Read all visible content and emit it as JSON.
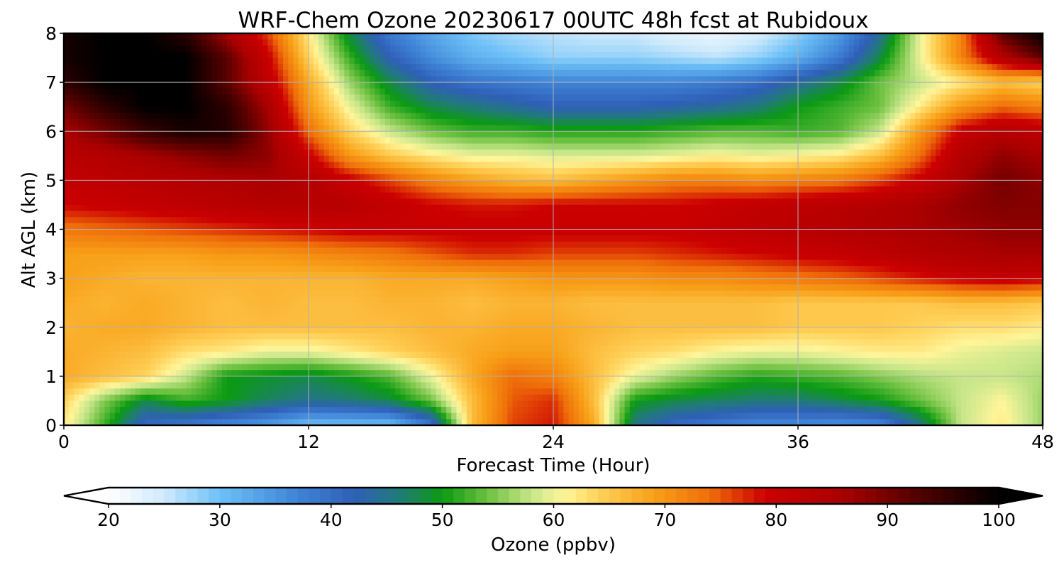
{
  "chart_data": {
    "type": "heatmap",
    "title": "WRF-Chem Ozone  20230617 00UTC 48h fcst at Rubidoux",
    "xlabel": "Forecast Time (Hour)",
    "ylabel": "Alt AGL (km)",
    "xlim": [
      0,
      48
    ],
    "ylim": [
      0,
      8
    ],
    "x_ticks": [
      "0",
      "12",
      "24",
      "36",
      "48"
    ],
    "y_ticks": [
      "0",
      "1",
      "2",
      "3",
      "4",
      "5",
      "6",
      "7",
      "8"
    ],
    "grid": true,
    "colorbar": {
      "label": "Ozone  (ppbv)",
      "range": [
        20,
        100
      ],
      "extend": "both",
      "ticks": [
        "20",
        "30",
        "40",
        "50",
        "60",
        "70",
        "80",
        "90",
        "100"
      ],
      "stops": [
        {
          "v": 20,
          "c": "#ffffff"
        },
        {
          "v": 25,
          "c": "#cfeafc"
        },
        {
          "v": 30,
          "c": "#6cc0f7"
        },
        {
          "v": 37,
          "c": "#3f84d6"
        },
        {
          "v": 42,
          "c": "#2f5fb8"
        },
        {
          "v": 46,
          "c": "#217a7a"
        },
        {
          "v": 50,
          "c": "#0b9a12"
        },
        {
          "v": 54,
          "c": "#6cc040"
        },
        {
          "v": 58,
          "c": "#c8e68a"
        },
        {
          "v": 61,
          "c": "#fff59a"
        },
        {
          "v": 64,
          "c": "#ffd25a"
        },
        {
          "v": 69,
          "c": "#f8a018"
        },
        {
          "v": 74,
          "c": "#ef6e0a"
        },
        {
          "v": 79,
          "c": "#cc0000"
        },
        {
          "v": 86,
          "c": "#aa0000"
        },
        {
          "v": 92,
          "c": "#5a0000"
        },
        {
          "v": 100,
          "c": "#000000"
        }
      ]
    },
    "x": [
      0,
      2,
      4,
      6,
      8,
      10,
      12,
      14,
      16,
      18,
      20,
      22,
      24,
      26,
      28,
      30,
      32,
      34,
      36,
      38,
      40,
      42,
      44,
      46,
      48
    ],
    "y": [
      0,
      0.5,
      1,
      1.5,
      2,
      2.5,
      3,
      3.5,
      4,
      4.5,
      5,
      5.5,
      6,
      6.5,
      7,
      7.5,
      8
    ],
    "z": [
      [
        62,
        52,
        40,
        38,
        36,
        34,
        30,
        30,
        30,
        38,
        66,
        76,
        78,
        68,
        45,
        40,
        38,
        36,
        36,
        35,
        36,
        45,
        58,
        62,
        56
      ],
      [
        64,
        55,
        48,
        52,
        50,
        47,
        45,
        46,
        48,
        54,
        66,
        75,
        77,
        66,
        50,
        48,
        47,
        46,
        46,
        48,
        50,
        54,
        58,
        61,
        56
      ],
      [
        68,
        66,
        64,
        58,
        50,
        49,
        48,
        50,
        53,
        60,
        68,
        74,
        72,
        66,
        60,
        56,
        53,
        51,
        52,
        53,
        55,
        57,
        58,
        58,
        57
      ],
      [
        68,
        67,
        66,
        63,
        62,
        60,
        60,
        62,
        64,
        66,
        68,
        69,
        69,
        66,
        64,
        63,
        61,
        60,
        60,
        61,
        62,
        62,
        60,
        59,
        58
      ],
      [
        67,
        68,
        68,
        67,
        66,
        66,
        66,
        66,
        66,
        67,
        67,
        68,
        68,
        67,
        66,
        66,
        66,
        66,
        65,
        65,
        65,
        64,
        63,
        63,
        62
      ],
      [
        68,
        67,
        68,
        67,
        66,
        67,
        66,
        66,
        67,
        67,
        66,
        67,
        67,
        66,
        66,
        66,
        66,
        66,
        65,
        65,
        65,
        65,
        66,
        66,
        65
      ],
      [
        69,
        68,
        67,
        67,
        67,
        67,
        67,
        67,
        68,
        68,
        68,
        69,
        70,
        70,
        70,
        71,
        71,
        72,
        73,
        74,
        76,
        78,
        80,
        81,
        80
      ],
      [
        69,
        69,
        69,
        69,
        70,
        70,
        71,
        72,
        73,
        75,
        77,
        77,
        76,
        76,
        76,
        77,
        78,
        79,
        80,
        81,
        82,
        84,
        85,
        86,
        86
      ],
      [
        73,
        74,
        75,
        76,
        77,
        78,
        79,
        80,
        80,
        80,
        80,
        80,
        80,
        80,
        80,
        80,
        81,
        82,
        83,
        84,
        85,
        86,
        87,
        88,
        88
      ],
      [
        79,
        80,
        81,
        82,
        83,
        84,
        84,
        83,
        81,
        79,
        78,
        78,
        79,
        79,
        79,
        79,
        80,
        81,
        82,
        83,
        84,
        86,
        88,
        89,
        89
      ],
      [
        81,
        82,
        83,
        84,
        85,
        86,
        84,
        80,
        76,
        72,
        69,
        67,
        66,
        68,
        70,
        72,
        72,
        71,
        72,
        73,
        76,
        80,
        86,
        90,
        88
      ],
      [
        83,
        84,
        86,
        88,
        90,
        88,
        80,
        70,
        65,
        62,
        60,
        60,
        59,
        59,
        59,
        60,
        61,
        60,
        61,
        62,
        66,
        74,
        84,
        88,
        86
      ],
      [
        86,
        90,
        95,
        98,
        97,
        88,
        74,
        64,
        58,
        54,
        52,
        52,
        51,
        51,
        51,
        52,
        53,
        53,
        52,
        53,
        58,
        70,
        80,
        84,
        82
      ],
      [
        90,
        96,
        100,
        100,
        96,
        86,
        70,
        60,
        52,
        48,
        46,
        44,
        42,
        42,
        42,
        43,
        44,
        46,
        50,
        52,
        54,
        62,
        70,
        74,
        72
      ],
      [
        96,
        100,
        100,
        100,
        92,
        82,
        68,
        56,
        48,
        42,
        39,
        38,
        37,
        37,
        37,
        37,
        38,
        40,
        44,
        48,
        54,
        58,
        62,
        66,
        64
      ],
      [
        98,
        100,
        100,
        100,
        92,
        80,
        64,
        52,
        42,
        36,
        32,
        30,
        28,
        28,
        28,
        27,
        26,
        28,
        32,
        38,
        48,
        60,
        72,
        84,
        92
      ],
      [
        98,
        100,
        100,
        96,
        86,
        76,
        62,
        48,
        38,
        33,
        29,
        27,
        26,
        25,
        25,
        23,
        22,
        24,
        28,
        34,
        44,
        60,
        72,
        92,
        100
      ]
    ]
  }
}
